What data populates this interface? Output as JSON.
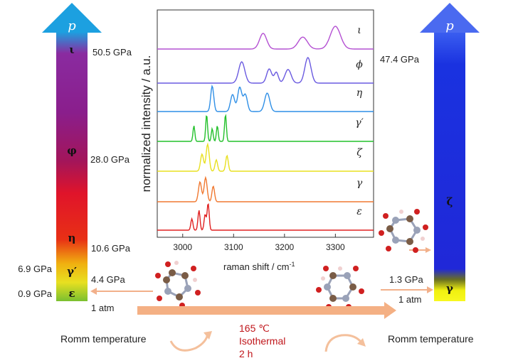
{
  "left_bar": {
    "top_symbol": "p",
    "phases": [
      "ι",
      "φ",
      "η",
      "γ′",
      "ε"
    ],
    "pressures": [
      "50.5 GPa",
      "28.0 GPa",
      "10.6 GPa",
      "6.9 GPa",
      "4.4 GPa",
      "0.9 GPa",
      "1 atm"
    ]
  },
  "right_bar": {
    "top_symbol": "p",
    "phases": [
      "ζ",
      "γ"
    ],
    "pressures": [
      "47.4 GPa",
      "1.3 GPa",
      "1 atm"
    ]
  },
  "process": {
    "temperature": "165 ℃",
    "mode": "Isothermal",
    "duration": "2 h",
    "left_caption": "Romm temperature",
    "right_caption": "Romm temperature"
  },
  "raman": {
    "ylabel": "normalized intensity / a.u.",
    "xlabel_main": "raman shift / cm",
    "xlabel_sup": "-1",
    "xticks": [
      "3000",
      "3100",
      "3200",
      "3300"
    ],
    "xrange": [
      2950,
      3375
    ],
    "traces": [
      {
        "label": "ι",
        "color": "#b450d2",
        "peaks": [
          [
            3158,
            0.55,
            7
          ],
          [
            3236,
            0.42,
            9
          ],
          [
            3300,
            0.8,
            10
          ]
        ]
      },
      {
        "label": "ϕ",
        "color": "#6a5ae0",
        "peaks": [
          [
            3116,
            0.75,
            6
          ],
          [
            3170,
            0.5,
            5
          ],
          [
            3184,
            0.38,
            4
          ],
          [
            3207,
            0.48,
            6
          ],
          [
            3246,
            0.9,
            6
          ]
        ]
      },
      {
        "label": "η",
        "color": "#2f8fe6",
        "peaks": [
          [
            3058,
            0.9,
            3
          ],
          [
            3098,
            0.6,
            4
          ],
          [
            3112,
            0.85,
            4
          ],
          [
            3123,
            0.6,
            4
          ],
          [
            3166,
            0.65,
            5
          ]
        ]
      },
      {
        "label": "γ′",
        "color": "#22c02a",
        "peaks": [
          [
            3022,
            0.55,
            1.8
          ],
          [
            3047,
            0.95,
            1.8
          ],
          [
            3058,
            0.45,
            1.8
          ],
          [
            3068,
            0.55,
            1.8
          ],
          [
            3084,
            0.95,
            1.8
          ]
        ]
      },
      {
        "label": "ζ",
        "color": "#e8e020",
        "peaks": [
          [
            3038,
            0.6,
            3
          ],
          [
            3049,
            0.95,
            3
          ],
          [
            3066,
            0.4,
            2.5
          ],
          [
            3087,
            0.55,
            2.5
          ]
        ]
      },
      {
        "label": "γ",
        "color": "#f07830",
        "peaks": [
          [
            3034,
            0.7,
            3
          ],
          [
            3045,
            0.85,
            3
          ],
          [
            3060,
            0.55,
            2.5
          ]
        ]
      },
      {
        "label": "ε",
        "color": "#e02020",
        "peaks": [
          [
            3018,
            0.4,
            2
          ],
          [
            3032,
            0.7,
            2
          ],
          [
            3044,
            0.55,
            2
          ],
          [
            3050,
            0.95,
            2
          ]
        ]
      }
    ]
  }
}
